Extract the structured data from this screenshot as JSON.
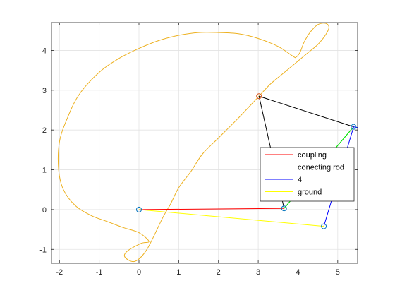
{
  "chart_data": {
    "type": "line",
    "title": "",
    "xlabel": "",
    "ylabel": "",
    "xlim": [
      -2.2,
      5.5
    ],
    "ylim": [
      -1.35,
      4.7
    ],
    "grid": true,
    "legend_position": "right",
    "xticks": [
      -2,
      -1,
      0,
      1,
      2,
      3,
      4,
      5
    ],
    "yticks": [
      -1,
      0,
      1,
      2,
      3,
      4
    ],
    "xtick_labels": [
      "-2",
      "-1",
      "0",
      "1",
      "2",
      "3",
      "4",
      "5"
    ],
    "ytick_labels": [
      "-1",
      "0",
      "1",
      "2",
      "3",
      "4"
    ],
    "series": [
      {
        "name": "coupling",
        "color": "#ff0000",
        "x": [
          0,
          3.65
        ],
        "y": [
          0,
          0.03
        ]
      },
      {
        "name": "conecting rod",
        "color": "#00ff00",
        "x": [
          3.65,
          5.4
        ],
        "y": [
          0.03,
          2.08
        ]
      },
      {
        "name": "4",
        "color": "#0000ff",
        "x": [
          4.65,
          5.4,
          5.5
        ],
        "y": [
          -0.42,
          2.08,
          2.06
        ]
      },
      {
        "name": "ground",
        "color": "#ffff00",
        "x": [
          0,
          4.65
        ],
        "y": [
          0,
          -0.42
        ]
      }
    ],
    "coupler_triangle": {
      "color": "#000000",
      "x": [
        3.02,
        5.4,
        3.65,
        3.02
      ],
      "y": [
        2.85,
        2.08,
        0.03,
        2.85
      ]
    },
    "coupler_curve": {
      "color": "#edb120",
      "x": [
        3.02,
        3.3,
        3.6,
        3.9,
        4.2,
        4.5,
        4.7,
        4.78,
        4.7,
        4.5,
        4.3,
        4.15,
        4.05,
        3.95,
        3.88,
        3.5,
        3.0,
        2.5,
        2.0,
        1.5,
        1.0,
        0.5,
        0.0,
        -0.5,
        -1.0,
        -1.5,
        -1.8,
        -2.0,
        -2.02,
        -1.9,
        -1.6,
        -1.2,
        -0.8,
        -0.4,
        0.0,
        0.25,
        0.05,
        -0.3,
        -0.35,
        -0.1,
        0.2,
        0.6,
        0.8,
        1.0,
        1.3,
        1.6,
        2.0,
        2.5,
        3.02
      ],
      "y": [
        2.85,
        3.15,
        3.4,
        3.65,
        3.9,
        4.15,
        4.4,
        4.58,
        4.68,
        4.65,
        4.45,
        4.2,
        3.95,
        3.83,
        3.85,
        4.1,
        4.3,
        4.42,
        4.45,
        4.45,
        4.38,
        4.25,
        4.05,
        3.8,
        3.45,
        2.9,
        2.3,
        1.7,
        1.0,
        0.5,
        0.1,
        -0.15,
        -0.3,
        -0.45,
        -0.58,
        -0.8,
        -0.85,
        -1.05,
        -1.2,
        -1.3,
        -1.0,
        -0.2,
        0.15,
        0.55,
        0.95,
        1.4,
        1.8,
        2.3,
        2.85
      ]
    },
    "joints": [
      {
        "x": 0,
        "y": 0,
        "color": "#0072bd"
      },
      {
        "x": 3.65,
        "y": 0.03,
        "color": "#0072bd"
      },
      {
        "x": 5.4,
        "y": 2.08,
        "color": "#0072bd"
      },
      {
        "x": 4.65,
        "y": -0.42,
        "color": "#0072bd"
      },
      {
        "x": 3.02,
        "y": 2.85,
        "color": "#d95319"
      }
    ]
  }
}
